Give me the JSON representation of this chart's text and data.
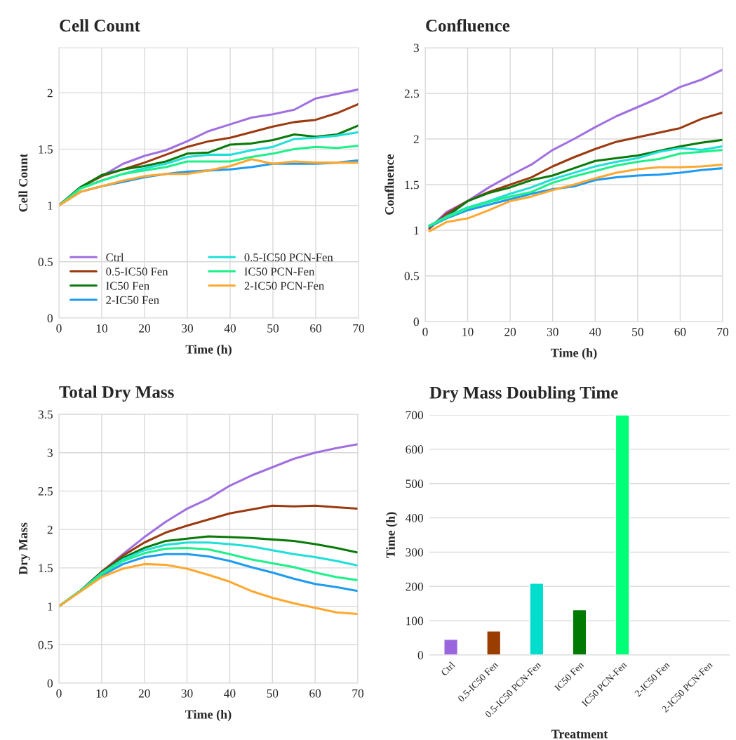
{
  "chart_data": [
    {
      "type": "line",
      "title": "Cell Count",
      "xlabel": "Time (h)",
      "ylabel": "Cell Count",
      "xlim": [
        0,
        70
      ],
      "xticks": [
        0,
        10,
        20,
        30,
        40,
        50,
        60,
        70
      ],
      "ylim": [
        0,
        2.4
      ],
      "yticks": [
        0,
        0.5,
        1,
        1.5,
        2
      ],
      "grid": true,
      "legend": "bottom left",
      "x": [
        0,
        5,
        10,
        15,
        20,
        25,
        30,
        35,
        40,
        45,
        50,
        55,
        60,
        65,
        70
      ],
      "series": [
        {
          "name": "Ctrl",
          "color": "#a070e0",
          "values": [
            1,
            1.16,
            1.26,
            1.37,
            1.44,
            1.49,
            1.57,
            1.66,
            1.72,
            1.78,
            1.81,
            1.85,
            1.95,
            1.99,
            2.03
          ]
        },
        {
          "name": "0.5-IC50 Fen",
          "color": "#9b3a10",
          "values": [
            1,
            1.16,
            1.26,
            1.32,
            1.38,
            1.45,
            1.52,
            1.57,
            1.6,
            1.65,
            1.7,
            1.74,
            1.76,
            1.82,
            1.9
          ]
        },
        {
          "name": "IC50 Fen",
          "color": "#0a7a0a",
          "values": [
            1,
            1.16,
            1.27,
            1.32,
            1.35,
            1.39,
            1.46,
            1.47,
            1.54,
            1.55,
            1.58,
            1.63,
            1.61,
            1.63,
            1.71
          ]
        },
        {
          "name": "2-IC50 Fen",
          "color": "#1e9af0",
          "values": [
            1,
            1.12,
            1.17,
            1.21,
            1.25,
            1.28,
            1.3,
            1.31,
            1.32,
            1.34,
            1.37,
            1.37,
            1.37,
            1.38,
            1.4
          ]
        },
        {
          "name": "0.5-IC50 PCN-Fen",
          "color": "#1fe0d8",
          "values": [
            1,
            1.15,
            1.22,
            1.28,
            1.33,
            1.37,
            1.43,
            1.45,
            1.45,
            1.49,
            1.52,
            1.59,
            1.6,
            1.62,
            1.65
          ]
        },
        {
          "name": "IC50 PCN-Fen",
          "color": "#1ef08a",
          "values": [
            1,
            1.15,
            1.22,
            1.28,
            1.31,
            1.34,
            1.39,
            1.39,
            1.39,
            1.43,
            1.46,
            1.5,
            1.52,
            1.51,
            1.53
          ]
        },
        {
          "name": "2-IC50 PCN-Fen",
          "color": "#ffa830",
          "values": [
            1,
            1.12,
            1.17,
            1.22,
            1.26,
            1.28,
            1.28,
            1.31,
            1.35,
            1.41,
            1.37,
            1.39,
            1.38,
            1.38,
            1.38
          ]
        }
      ]
    },
    {
      "type": "line",
      "title": "Confluence",
      "xlabel": "Time (h)",
      "ylabel": "Confluence",
      "xlim": [
        0,
        70
      ],
      "xticks": [
        0,
        10,
        20,
        30,
        40,
        50,
        60,
        70
      ],
      "ylim": [
        0,
        3
      ],
      "yticks": [
        0,
        0.5,
        1,
        1.5,
        2,
        2.5,
        3
      ],
      "grid": true,
      "x": [
        1,
        5,
        10,
        15,
        20,
        25,
        30,
        35,
        40,
        45,
        50,
        55,
        60,
        65,
        70
      ],
      "series": [
        {
          "color": "#a070e0",
          "values": [
            1.02,
            1.2,
            1.32,
            1.47,
            1.6,
            1.72,
            1.88,
            2.0,
            2.13,
            2.25,
            2.35,
            2.45,
            2.57,
            2.65,
            2.76
          ]
        },
        {
          "color": "#9b3a10",
          "values": [
            1.02,
            1.18,
            1.32,
            1.42,
            1.5,
            1.58,
            1.7,
            1.8,
            1.89,
            1.97,
            2.02,
            2.07,
            2.12,
            2.22,
            2.29
          ]
        },
        {
          "color": "#0a7a0a",
          "values": [
            1.05,
            1.15,
            1.32,
            1.41,
            1.47,
            1.55,
            1.6,
            1.68,
            1.76,
            1.79,
            1.82,
            1.87,
            1.92,
            1.96,
            1.99
          ]
        },
        {
          "color": "#1e9af0",
          "values": [
            1.04,
            1.13,
            1.22,
            1.28,
            1.34,
            1.4,
            1.45,
            1.48,
            1.55,
            1.58,
            1.6,
            1.61,
            1.63,
            1.66,
            1.68
          ]
        },
        {
          "color": "#1fe0d8",
          "values": [
            1.05,
            1.15,
            1.25,
            1.32,
            1.4,
            1.47,
            1.56,
            1.63,
            1.7,
            1.75,
            1.79,
            1.86,
            1.9,
            1.88,
            1.92
          ]
        },
        {
          "color": "#1ef08a",
          "values": [
            1.05,
            1.14,
            1.24,
            1.31,
            1.37,
            1.42,
            1.52,
            1.59,
            1.65,
            1.71,
            1.75,
            1.78,
            1.84,
            1.86,
            1.88
          ]
        },
        {
          "color": "#ffa830",
          "values": [
            0.99,
            1.09,
            1.13,
            1.22,
            1.32,
            1.37,
            1.44,
            1.5,
            1.57,
            1.63,
            1.67,
            1.69,
            1.69,
            1.7,
            1.72
          ]
        }
      ]
    },
    {
      "type": "line",
      "title": "Total Dry Mass",
      "xlabel": "Time (h)",
      "ylabel": "Dry Mass",
      "xlim": [
        0,
        70
      ],
      "xticks": [
        0,
        10,
        20,
        30,
        40,
        50,
        60,
        70
      ],
      "ylim": [
        0,
        3.5
      ],
      "yticks": [
        0,
        0.5,
        1,
        1.5,
        2,
        2.5,
        3,
        3.5
      ],
      "grid": true,
      "x": [
        0,
        5,
        10,
        15,
        20,
        25,
        30,
        35,
        40,
        45,
        50,
        55,
        60,
        65,
        70
      ],
      "series": [
        {
          "color": "#a070e0",
          "values": [
            1,
            1.2,
            1.45,
            1.68,
            1.9,
            2.1,
            2.27,
            2.4,
            2.57,
            2.7,
            2.81,
            2.92,
            3.0,
            3.06,
            3.11
          ]
        },
        {
          "color": "#9b3a10",
          "values": [
            1,
            1.2,
            1.45,
            1.66,
            1.83,
            1.96,
            2.05,
            2.13,
            2.21,
            2.26,
            2.31,
            2.3,
            2.31,
            2.29,
            2.27
          ]
        },
        {
          "color": "#0a7a0a",
          "values": [
            1,
            1.2,
            1.44,
            1.63,
            1.76,
            1.85,
            1.88,
            1.91,
            1.9,
            1.89,
            1.87,
            1.85,
            1.81,
            1.76,
            1.7
          ]
        },
        {
          "color": "#1e9af0",
          "values": [
            1,
            1.2,
            1.4,
            1.55,
            1.64,
            1.68,
            1.68,
            1.65,
            1.59,
            1.51,
            1.44,
            1.36,
            1.29,
            1.25,
            1.2
          ]
        },
        {
          "color": "#1fe0d8",
          "values": [
            1,
            1.2,
            1.43,
            1.61,
            1.73,
            1.8,
            1.83,
            1.83,
            1.81,
            1.78,
            1.73,
            1.68,
            1.64,
            1.59,
            1.53
          ]
        },
        {
          "color": "#1ef08a",
          "values": [
            1,
            1.2,
            1.42,
            1.59,
            1.69,
            1.75,
            1.76,
            1.74,
            1.68,
            1.61,
            1.56,
            1.51,
            1.44,
            1.38,
            1.34
          ]
        },
        {
          "color": "#ffa830",
          "values": [
            1,
            1.19,
            1.38,
            1.49,
            1.55,
            1.54,
            1.49,
            1.41,
            1.32,
            1.2,
            1.11,
            1.04,
            0.98,
            0.92,
            0.9
          ]
        }
      ]
    },
    {
      "type": "bar",
      "title": "Dry Mass Doubling Time",
      "xlabel": "Treatment",
      "ylabel": "Time (h)",
      "ylim": [
        0,
        700
      ],
      "yticks": [
        0,
        100,
        200,
        300,
        400,
        500,
        600,
        700
      ],
      "grid": "y",
      "categories": [
        "Ctrl",
        "0.5-IC50 Fen",
        "0.5-IC50 PCN-Fen",
        "IC50 Fen",
        "IC50 PCN-Fen",
        "2-IC50 Fen",
        "2-IC50 PCN-Fen"
      ],
      "values": [
        46,
        70,
        209,
        132,
        700,
        null,
        null
      ],
      "colors": [
        "#9966dd",
        "#993d00",
        "#00ddcc",
        "#007a00",
        "#00ff77",
        "#888888",
        "#888888"
      ]
    }
  ]
}
